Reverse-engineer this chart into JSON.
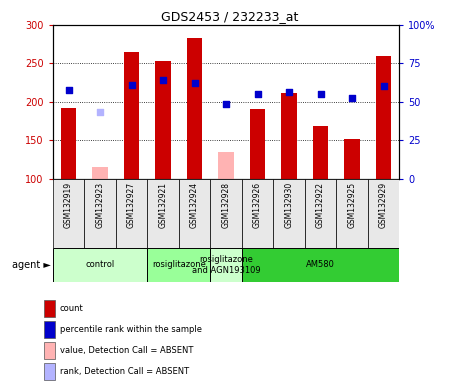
{
  "title": "GDS2453 / 232233_at",
  "samples": [
    "GSM132919",
    "GSM132923",
    "GSM132927",
    "GSM132921",
    "GSM132924",
    "GSM132928",
    "GSM132926",
    "GSM132930",
    "GSM132922",
    "GSM132925",
    "GSM132929"
  ],
  "bar_values": [
    192,
    null,
    265,
    253,
    283,
    null,
    190,
    212,
    168,
    151,
    260
  ],
  "bar_values_absent": [
    null,
    115,
    null,
    null,
    null,
    135,
    null,
    null,
    null,
    null,
    null
  ],
  "rank_values": [
    215,
    null,
    222,
    228,
    225,
    197,
    210,
    213,
    210,
    205,
    220
  ],
  "rank_values_absent": [
    null,
    187,
    null,
    null,
    null,
    null,
    null,
    null,
    null,
    null,
    null
  ],
  "ylim_left": [
    100,
    300
  ],
  "ylim_right": [
    0,
    100
  ],
  "yticks_left": [
    100,
    150,
    200,
    250,
    300
  ],
  "yticks_right": [
    0,
    25,
    50,
    75,
    100
  ],
  "ytick_labels_left": [
    "100",
    "150",
    "200",
    "250",
    "300"
  ],
  "ytick_labels_right": [
    "0",
    "25",
    "50",
    "75",
    "100%"
  ],
  "bar_color": "#cc0000",
  "bar_absent_color": "#ffb3b3",
  "rank_color": "#0000cc",
  "rank_absent_color": "#b3b3ff",
  "agent_groups": [
    {
      "label": "control",
      "start": 0,
      "end": 3,
      "color": "#ccffcc"
    },
    {
      "label": "rosiglitazone",
      "start": 3,
      "end": 5,
      "color": "#99ff99"
    },
    {
      "label": "rosiglitazone\nand AGN193109",
      "start": 5,
      "end": 6,
      "color": "#ccffcc"
    },
    {
      "label": "AM580",
      "start": 6,
      "end": 11,
      "color": "#33cc33"
    }
  ],
  "legend_items": [
    {
      "color": "#cc0000",
      "label": "count"
    },
    {
      "color": "#0000cc",
      "label": "percentile rank within the sample"
    },
    {
      "color": "#ffb3b3",
      "label": "value, Detection Call = ABSENT"
    },
    {
      "color": "#b3b3ff",
      "label": "rank, Detection Call = ABSENT"
    }
  ],
  "background_color": "#e8e8e8",
  "plot_bg_color": "#ffffff"
}
